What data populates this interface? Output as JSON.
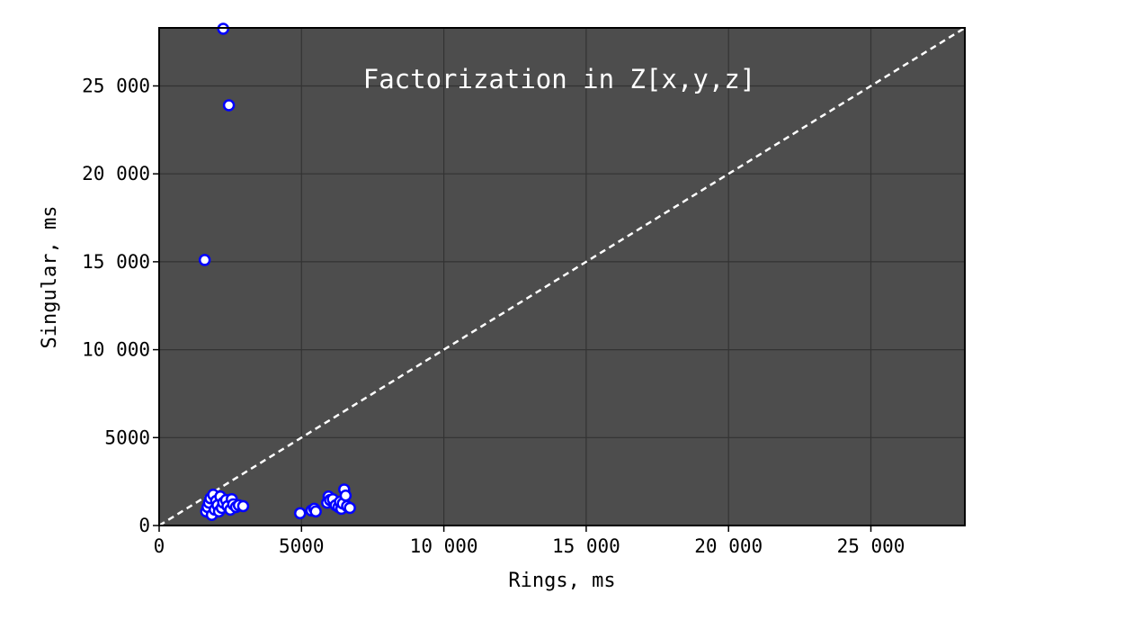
{
  "chart_data": {
    "type": "scatter",
    "title": "Factorization in Z[x,y,z]",
    "xlabel": "Rings, ms",
    "ylabel": "Singular, ms",
    "xlim": [
      0,
      28300
    ],
    "ylim": [
      0,
      28300
    ],
    "x_ticks": [
      {
        "value": 0,
        "label": "0"
      },
      {
        "value": 5000,
        "label": "5000"
      },
      {
        "value": 10000,
        "label": "10 000"
      },
      {
        "value": 15000,
        "label": "15 000"
      },
      {
        "value": 20000,
        "label": "20 000"
      },
      {
        "value": 25000,
        "label": "25 000"
      }
    ],
    "y_ticks": [
      {
        "value": 0,
        "label": "0"
      },
      {
        "value": 5000,
        "label": "5000"
      },
      {
        "value": 10000,
        "label": "10 000"
      },
      {
        "value": 15000,
        "label": "15 000"
      },
      {
        "value": 20000,
        "label": "20 000"
      },
      {
        "value": 25000,
        "label": "25 000"
      }
    ],
    "grid": true,
    "reference_line": "y = x",
    "colors": {
      "background": "#4d4d4d",
      "marker_edge": "#0000ff",
      "marker_fill": "#ffffff",
      "grid": "#333333",
      "reference_line": "#ffffff"
    },
    "points": [
      [
        2250,
        28250
      ],
      [
        2450,
        23900
      ],
      [
        1600,
        15100
      ],
      [
        1650,
        800
      ],
      [
        1700,
        1050
      ],
      [
        1750,
        1300
      ],
      [
        1800,
        1550
      ],
      [
        1850,
        600
      ],
      [
        1900,
        1750
      ],
      [
        1950,
        900
      ],
      [
        2000,
        1400
      ],
      [
        2050,
        1150
      ],
      [
        2100,
        800
      ],
      [
        2150,
        1650
      ],
      [
        2200,
        1000
      ],
      [
        2250,
        1300
      ],
      [
        2350,
        1450
      ],
      [
        2400,
        1100
      ],
      [
        2500,
        900
      ],
      [
        2550,
        1500
      ],
      [
        2600,
        1200
      ],
      [
        2700,
        1050
      ],
      [
        2800,
        1150
      ],
      [
        2950,
        1100
      ],
      [
        4950,
        700
      ],
      [
        5350,
        850
      ],
      [
        5450,
        950
      ],
      [
        5500,
        800
      ],
      [
        5900,
        1300
      ],
      [
        5950,
        1650
      ],
      [
        6000,
        1450
      ],
      [
        6100,
        1500
      ],
      [
        6200,
        1150
      ],
      [
        6300,
        1050
      ],
      [
        6350,
        1350
      ],
      [
        6400,
        950
      ],
      [
        6450,
        1250
      ],
      [
        6500,
        2050
      ],
      [
        6550,
        1700
      ],
      [
        6600,
        1100
      ],
      [
        6700,
        1000
      ]
    ]
  }
}
